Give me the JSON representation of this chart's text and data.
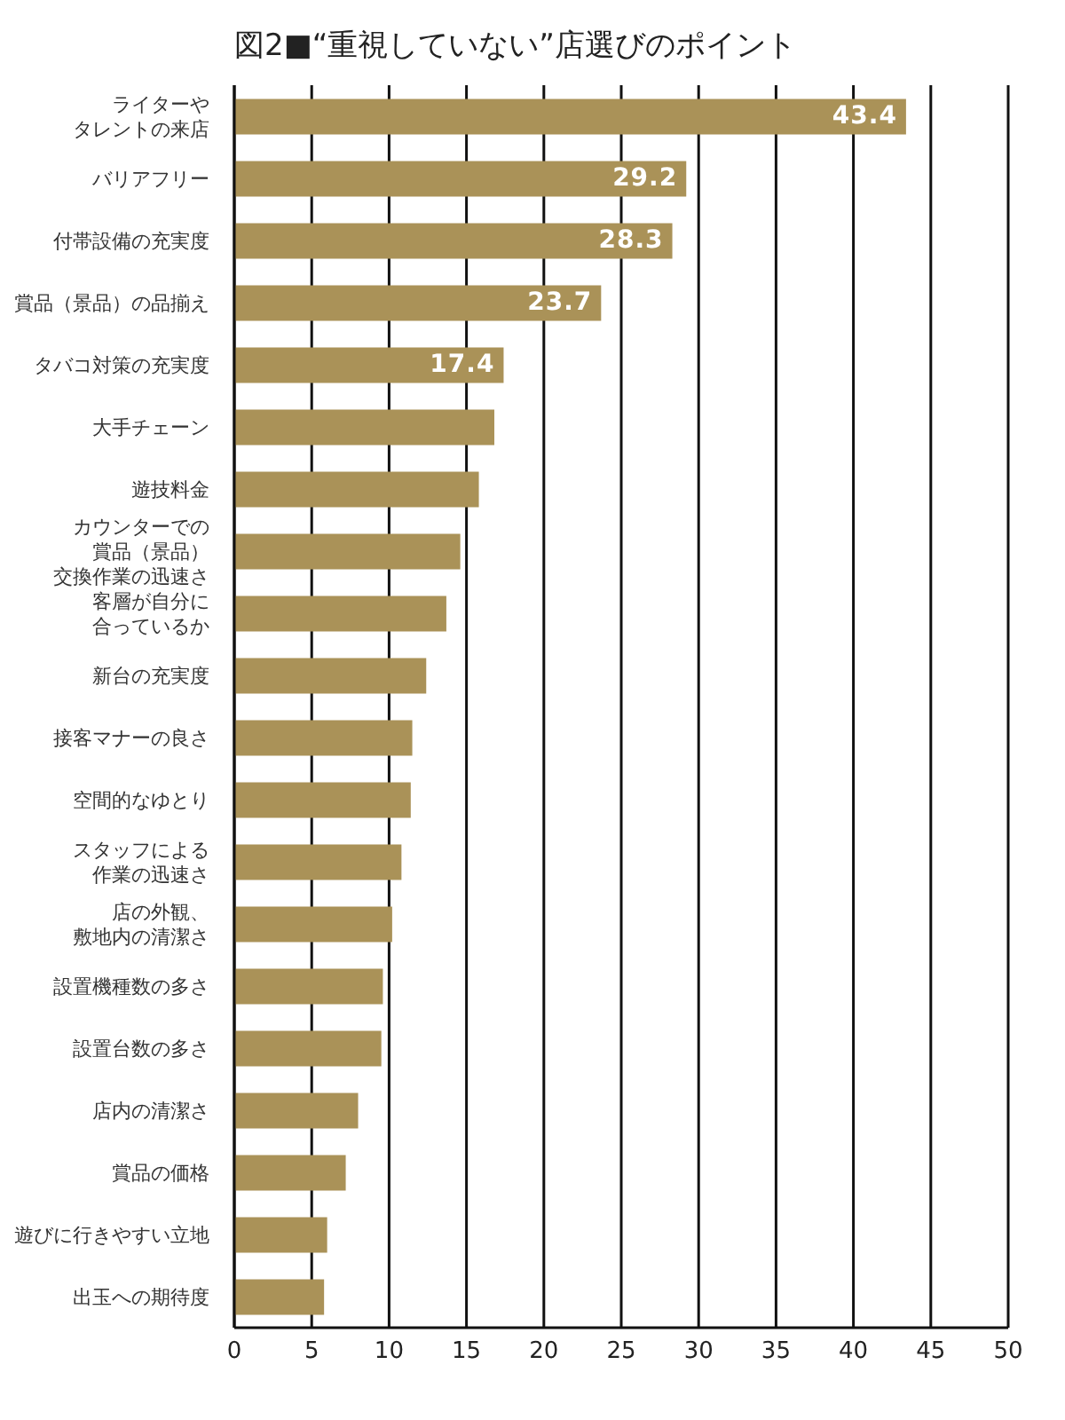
{
  "chart_data": {
    "type": "bar",
    "orientation": "horizontal",
    "title": "図2■“重視していない”店選びのポイント",
    "categories": [
      "ライターやタレントの来店",
      "バリアフリー",
      "付帯設備の充実度",
      "賞品（景品）の品揃え",
      "タバコ対策の充実度",
      "大手チェーン",
      "遊技料金",
      "カウンターでの賞品（景品）交換作業の迅速さ",
      "客層が自分に合っているか",
      "新台の充実度",
      "接客マナーの良さ",
      "空間的なゆとり",
      "スタッフによる作業の迅速さ",
      "店の外観、敷地内の清潔さ",
      "設置機種数の多さ",
      "設置台数の多さ",
      "店内の清潔さ",
      "賞品の価格",
      "遊びに行きやすい立地",
      "出玉への期待度"
    ],
    "values": [
      43.4,
      29.2,
      28.3,
      23.7,
      17.4,
      16.8,
      15.8,
      14.6,
      13.7,
      12.4,
      11.5,
      11.4,
      10.8,
      10.2,
      9.6,
      9.5,
      8.0,
      7.2,
      6.0,
      5.8
    ],
    "value_labels": [
      "43.4",
      "29.2",
      "28.3",
      "23.7",
      "17.4",
      null,
      null,
      null,
      null,
      null,
      null,
      null,
      null,
      null,
      null,
      null,
      null,
      null,
      null,
      null
    ],
    "color": "#aa9258",
    "xlim": [
      0,
      50
    ],
    "xticks": [
      0,
      5,
      10,
      15,
      20,
      25,
      30,
      35,
      40,
      45,
      50
    ],
    "grid": "x"
  }
}
